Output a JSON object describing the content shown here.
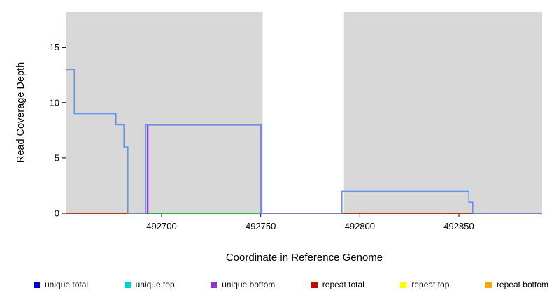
{
  "chart_data": {
    "type": "line",
    "title": "",
    "xlabel": "Coordinate in Reference Genome",
    "ylabel": "Read Coverage Depth",
    "xlim": [
      492652,
      492892
    ],
    "ylim": [
      0,
      18.2
    ],
    "x_ticks": [
      492700,
      492750,
      492800,
      492850
    ],
    "y_ticks": [
      0,
      5,
      10,
      15
    ],
    "grid": false,
    "plot_bg": "#ffffff",
    "shaded_regions": [
      {
        "x0": 492652,
        "x1": 492751,
        "color": "#d8d8d8"
      },
      {
        "x0": 492792,
        "x1": 492892,
        "color": "#d8d8d8"
      }
    ],
    "series": [
      {
        "name": "repeat bottom",
        "color": "#FFA500",
        "width": 1.2,
        "points": [
          [
            492652,
            0
          ],
          [
            492892,
            0
          ]
        ]
      },
      {
        "name": "repeat top",
        "color": "#FFFF00",
        "width": 1.2,
        "points": [
          [
            492652,
            0
          ],
          [
            492892,
            0
          ]
        ]
      },
      {
        "name": "repeat total",
        "color": "#CD2020",
        "width": 1.3,
        "points": [
          [
            492652,
            0
          ],
          [
            492892,
            0
          ]
        ]
      },
      {
        "name": "unique top",
        "color": "#00CD66",
        "width": 1.5,
        "points": [
          [
            492693,
            0
          ],
          [
            492750,
            0
          ]
        ]
      },
      {
        "name": "unique bottom",
        "color": "#8A2BE2",
        "width": 2.2,
        "points": [
          [
            492693,
            0
          ],
          [
            492693,
            8
          ],
          [
            492750,
            8
          ],
          [
            492750,
            0
          ]
        ]
      },
      {
        "name": "unique total",
        "color": "#6495ED",
        "width": 1.6,
        "points": [
          [
            492652,
            13
          ],
          [
            492656,
            13
          ],
          [
            492656,
            9
          ],
          [
            492677,
            9
          ],
          [
            492677,
            8
          ],
          [
            492681,
            8
          ],
          [
            492681,
            6
          ],
          [
            492683,
            6
          ],
          [
            492683,
            0
          ],
          [
            492692,
            0
          ],
          [
            492692,
            8
          ],
          [
            492750,
            8
          ],
          [
            492750,
            0
          ],
          [
            492791,
            0
          ],
          [
            492791,
            2
          ],
          [
            492855,
            2
          ],
          [
            492855,
            1
          ],
          [
            492857,
            1
          ],
          [
            492857,
            0
          ],
          [
            492892,
            0
          ]
        ]
      }
    ],
    "legend": [
      {
        "label": "unique total",
        "color": "#0000CD"
      },
      {
        "label": "unique top",
        "color": "#00CED1"
      },
      {
        "label": "unique bottom",
        "color": "#9932CC"
      },
      {
        "label": "repeat total",
        "color": "#CD0000"
      },
      {
        "label": "repeat top",
        "color": "#FFFF00"
      },
      {
        "label": "repeat bottom",
        "color": "#FFA500"
      }
    ],
    "legend_position": "bottom"
  }
}
